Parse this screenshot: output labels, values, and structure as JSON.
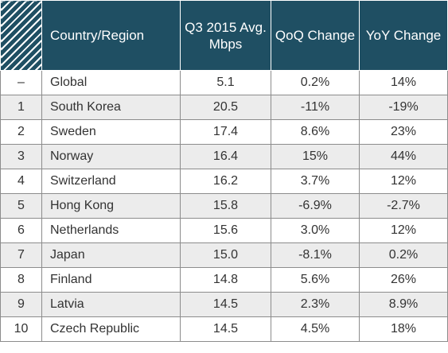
{
  "table": {
    "headers": {
      "country": "Country/Region",
      "avg_mbps": "Q3 2015 Avg. Mbps",
      "qoq": "QoQ Change",
      "yoy": "YoY Change"
    },
    "rows": [
      {
        "rank": "–",
        "country": "Global",
        "avg_mbps": "5.1",
        "qoq": "0.2%",
        "yoy": "14%"
      },
      {
        "rank": "1",
        "country": "South Korea",
        "avg_mbps": "20.5",
        "qoq": "-11%",
        "yoy": "-19%"
      },
      {
        "rank": "2",
        "country": "Sweden",
        "avg_mbps": "17.4",
        "qoq": "8.6%",
        "yoy": "23%"
      },
      {
        "rank": "3",
        "country": "Norway",
        "avg_mbps": "16.4",
        "qoq": "15%",
        "yoy": "44%"
      },
      {
        "rank": "4",
        "country": "Switzerland",
        "avg_mbps": "16.2",
        "qoq": "3.7%",
        "yoy": "12%"
      },
      {
        "rank": "5",
        "country": "Hong Kong",
        "avg_mbps": "15.8",
        "qoq": "-6.9%",
        "yoy": "-2.7%"
      },
      {
        "rank": "6",
        "country": "Netherlands",
        "avg_mbps": "15.6",
        "qoq": "3.0%",
        "yoy": "12%"
      },
      {
        "rank": "7",
        "country": "Japan",
        "avg_mbps": "15.0",
        "qoq": "-8.1%",
        "yoy": "0.2%"
      },
      {
        "rank": "8",
        "country": "Finland",
        "avg_mbps": "14.8",
        "qoq": "5.6%",
        "yoy": "26%"
      },
      {
        "rank": "9",
        "country": "Latvia",
        "avg_mbps": "14.5",
        "qoq": "2.3%",
        "yoy": "8.9%"
      },
      {
        "rank": "10",
        "country": "Czech Republic",
        "avg_mbps": "14.5",
        "qoq": "4.5%",
        "yoy": "18%"
      }
    ]
  },
  "colors": {
    "header_bg": "#1f4f63",
    "header_text": "#ffffff",
    "stripe_bg": "#ececec",
    "border": "#8c8c8c"
  }
}
